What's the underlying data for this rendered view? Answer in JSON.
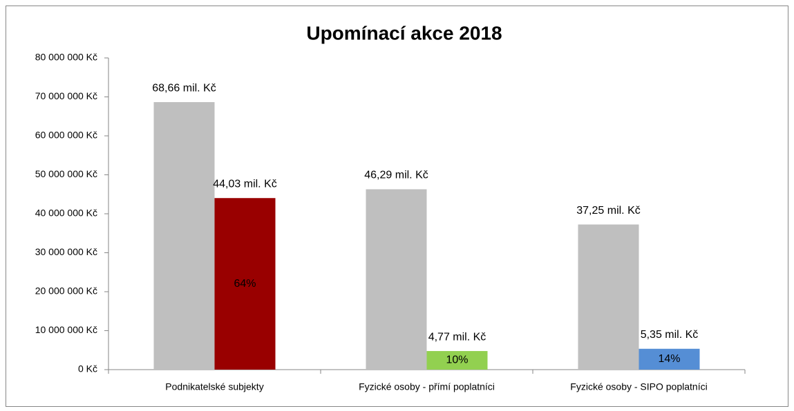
{
  "chart_data": {
    "type": "bar",
    "title": "Upomínací akce 2018",
    "categories": [
      "Podnikatelské subjekty",
      "Fyzické osoby - přímí poplatníci",
      "Fyzické osoby - SIPO poplatníci"
    ],
    "series": [
      {
        "color": "#bfbfbf",
        "values": [
          68660000,
          46290000,
          37250000
        ],
        "value_labels": [
          "68,66 mil. Kč",
          "46,29 mil. Kč",
          "37,25 mil. Kč"
        ]
      },
      {
        "colors": [
          "#990000",
          "#92d050",
          "#558ed5"
        ],
        "values": [
          44030000,
          4770000,
          5350000
        ],
        "value_labels": [
          "44,03 mil. Kč",
          "4,77 mil. Kč",
          "5,35 mil. Kč"
        ],
        "inner_labels": [
          "64%",
          "10%",
          "14%"
        ]
      }
    ],
    "ylim": [
      0,
      80000000
    ],
    "yticks": [
      {
        "value": 0,
        "label": "0 Kč"
      },
      {
        "value": 10000000,
        "label": "10 000 000 Kč"
      },
      {
        "value": 20000000,
        "label": "20 000 000 Kč"
      },
      {
        "value": 30000000,
        "label": "30 000 000 Kč"
      },
      {
        "value": 40000000,
        "label": "40 000 000 Kč"
      },
      {
        "value": 50000000,
        "label": "50 000 000 Kč"
      },
      {
        "value": 60000000,
        "label": "60 000 000 Kč"
      },
      {
        "value": 70000000,
        "label": "70 000 000 Kč"
      },
      {
        "value": 80000000,
        "label": "80 000 000 Kč"
      }
    ],
    "grid": false
  }
}
